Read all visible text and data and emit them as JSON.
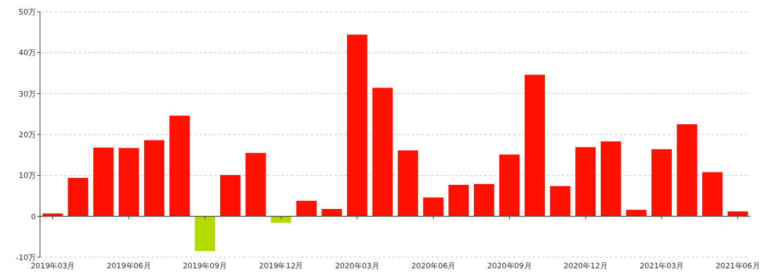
{
  "chart_data": {
    "type": "bar",
    "categories": [
      "2019年03月",
      null,
      null,
      "2019年06月",
      null,
      null,
      "2019年09月",
      null,
      null,
      "2019年12月",
      null,
      null,
      "2020年03月",
      null,
      null,
      "2020年06月",
      null,
      null,
      "2020年09月",
      null,
      null,
      "2020年12月",
      null,
      null,
      "2021年03月",
      null,
      null,
      "2021年06月"
    ],
    "values": [
      0.7,
      9.4,
      16.8,
      16.7,
      18.6,
      24.6,
      -8.5,
      10.1,
      15.5,
      -1.6,
      3.8,
      1.8,
      44.4,
      31.4,
      16.1,
      4.6,
      7.7,
      7.9,
      15.1,
      34.6,
      7.4,
      16.9,
      18.3,
      1.6,
      16.4,
      22.5,
      10.8,
      1.2
    ],
    "colors": [
      "#ff1100",
      "#ff1100",
      "#ff1100",
      "#ff1100",
      "#ff1100",
      "#ff1100",
      "#b2d900",
      "#ff1100",
      "#ff1100",
      "#b2d900",
      "#ff1100",
      "#ff1100",
      "#ff1100",
      "#ff1100",
      "#ff1100",
      "#ff1100",
      "#ff1100",
      "#ff1100",
      "#ff1100",
      "#ff1100",
      "#ff1100",
      "#ff1100",
      "#ff1100",
      "#ff1100",
      "#ff1100",
      "#ff1100",
      "#ff1100",
      "#ff1100"
    ],
    "ylim": [
      -10,
      50
    ],
    "yticks": [
      {
        "value": -10,
        "label": "-10万"
      },
      {
        "value": 0,
        "label": "0"
      },
      {
        "value": 10,
        "label": "10万"
      },
      {
        "value": 20,
        "label": "20万"
      },
      {
        "value": 30,
        "label": "30万"
      },
      {
        "value": 40,
        "label": "40万"
      },
      {
        "value": 50,
        "label": "50万"
      }
    ],
    "grid": "y"
  }
}
